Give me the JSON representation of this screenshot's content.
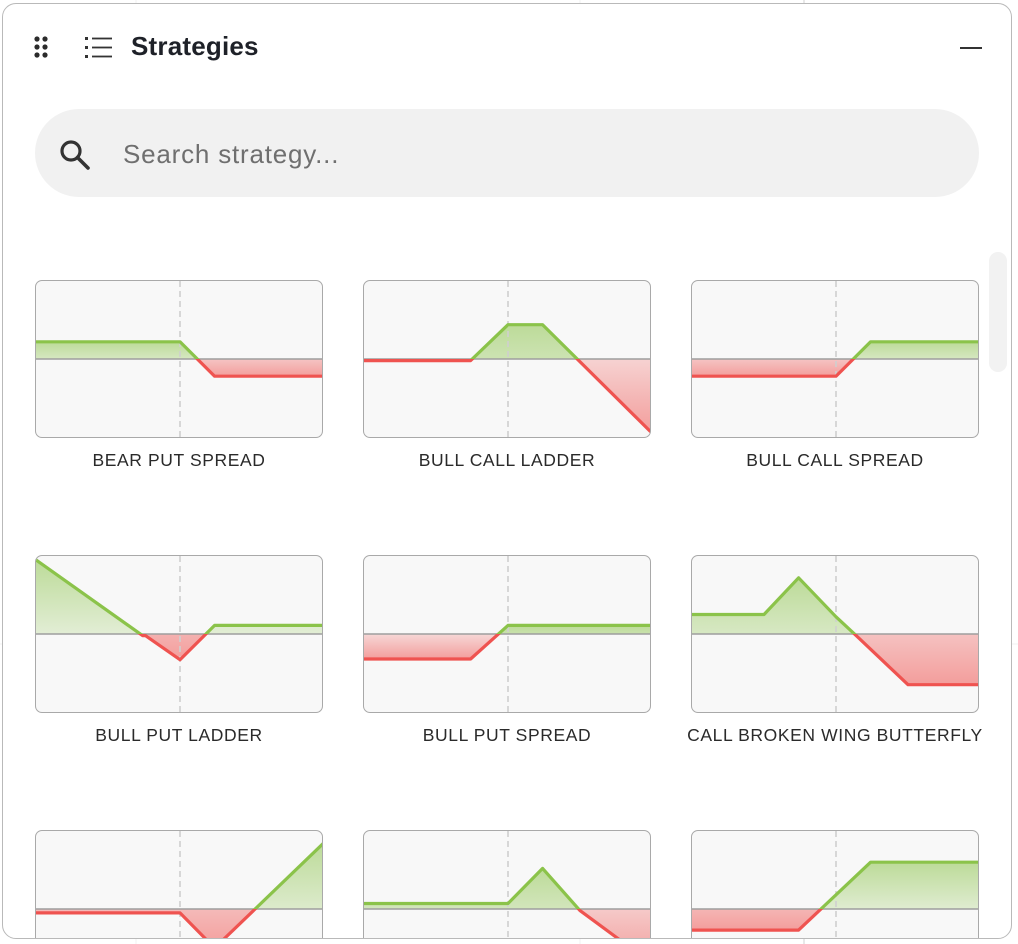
{
  "header": {
    "title": "Strategies",
    "drag_icon": "drag-handle-icon",
    "list_icon": "list-icon",
    "minimize_icon": "minimize-icon"
  },
  "search": {
    "placeholder": "Search strategy...",
    "value": "",
    "icon": "search-icon"
  },
  "colors": {
    "profit": "#8bc34a",
    "loss": "#ef5350",
    "zero_line": "#9e9e9e",
    "strike_line": "#cfcfcf",
    "thumb_bg": "#f8f8f8"
  },
  "strategies": [
    {
      "name": "BEAR PUT SPREAD",
      "payoff": [
        [
          0,
          0.22
        ],
        [
          0.5,
          0.22
        ],
        [
          0.62,
          -0.22
        ],
        [
          1,
          -0.22
        ]
      ]
    },
    {
      "name": "BULL CALL LADDER",
      "payoff": [
        [
          0,
          -0.02
        ],
        [
          0.37,
          -0.02
        ],
        [
          0.5,
          0.44
        ],
        [
          0.62,
          0.44
        ],
        [
          1,
          -0.95
        ]
      ]
    },
    {
      "name": "BULL CALL SPREAD",
      "payoff": [
        [
          0,
          -0.22
        ],
        [
          0.5,
          -0.22
        ],
        [
          0.62,
          0.22
        ],
        [
          1,
          0.22
        ]
      ]
    },
    {
      "name": "BULL PUT LADDER",
      "payoff": [
        [
          0,
          0.95
        ],
        [
          0.37,
          -0.02
        ],
        [
          0.38,
          -0.02
        ],
        [
          0.5,
          -0.33
        ],
        [
          0.62,
          0.11
        ],
        [
          1,
          0.11
        ]
      ]
    },
    {
      "name": "BULL PUT SPREAD",
      "payoff": [
        [
          0,
          -0.32
        ],
        [
          0.37,
          -0.32
        ],
        [
          0.5,
          0.11
        ],
        [
          1,
          0.11
        ]
      ]
    },
    {
      "name": "CALL BROKEN WING BUTTERFLY",
      "payoff": [
        [
          0,
          0.25
        ],
        [
          0.25,
          0.25
        ],
        [
          0.37,
          0.72
        ],
        [
          0.5,
          0.22
        ],
        [
          0.57,
          -0.02
        ],
        [
          0.75,
          -0.65
        ],
        [
          1,
          -0.65
        ]
      ]
    },
    {
      "name": "",
      "payoff": [
        [
          0,
          -0.05
        ],
        [
          0.5,
          -0.05
        ],
        [
          0.62,
          -0.5
        ],
        [
          1,
          0.85
        ]
      ]
    },
    {
      "name": "",
      "payoff": [
        [
          0,
          0.07
        ],
        [
          0.5,
          0.07
        ],
        [
          0.62,
          0.52
        ],
        [
          0.75,
          -0.02
        ],
        [
          1,
          -0.7
        ]
      ]
    },
    {
      "name": "",
      "payoff": [
        [
          0,
          -0.27
        ],
        [
          0.37,
          -0.27
        ],
        [
          0.62,
          0.6
        ],
        [
          1,
          0.6
        ]
      ]
    }
  ]
}
